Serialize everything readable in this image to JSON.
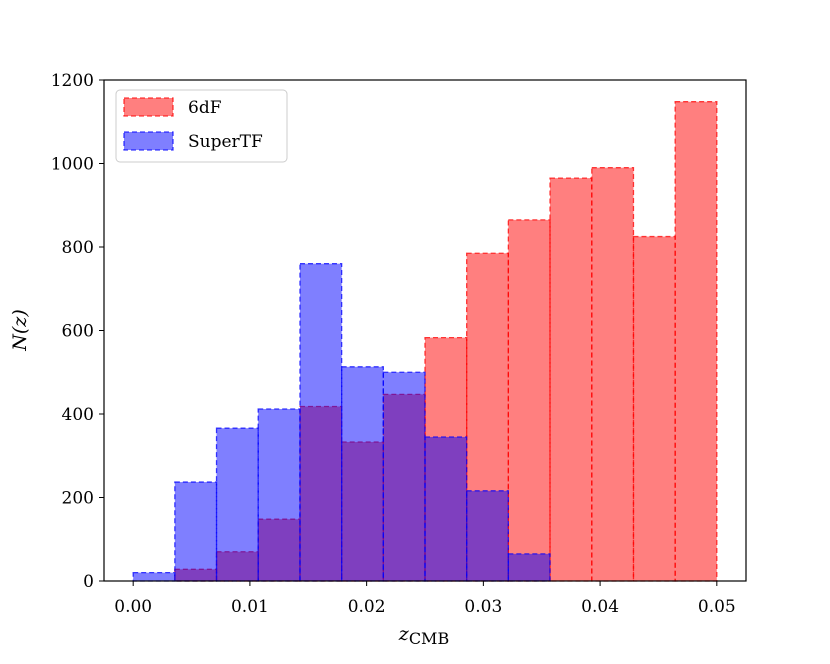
{
  "chart_data": {
    "type": "bar",
    "title": "",
    "xlabel": "z",
    "xlabel_sub": "CMB",
    "ylabel": "N(z)",
    "xlim": [
      -0.0025,
      0.0525
    ],
    "ylim": [
      0,
      1200
    ],
    "xticks": [
      "0.00",
      "0.01",
      "0.02",
      "0.03",
      "0.04",
      "0.05"
    ],
    "yticks": [
      "0",
      "200",
      "400",
      "600",
      "800",
      "1000",
      "1200"
    ],
    "bin_edges": [
      0.0,
      0.00357,
      0.00714,
      0.01071,
      0.01429,
      0.01786,
      0.02143,
      0.025,
      0.02857,
      0.03214,
      0.03571,
      0.03929,
      0.04286,
      0.04643,
      0.05
    ],
    "series": [
      {
        "name": "6dF",
        "color": "#ff0000",
        "fill_opacity": 0.5,
        "values": [
          0,
          28,
          70,
          148,
          418,
          333,
          447,
          583,
          785,
          865,
          965,
          990,
          825,
          1148
        ]
      },
      {
        "name": "SuperTF",
        "color": "#0000ff",
        "fill_opacity": 0.5,
        "values": [
          20,
          237,
          366,
          412,
          760,
          513,
          500,
          345,
          216,
          65,
          0,
          0,
          0,
          0
        ]
      }
    ],
    "legend_position": "top-left",
    "grid": false
  }
}
